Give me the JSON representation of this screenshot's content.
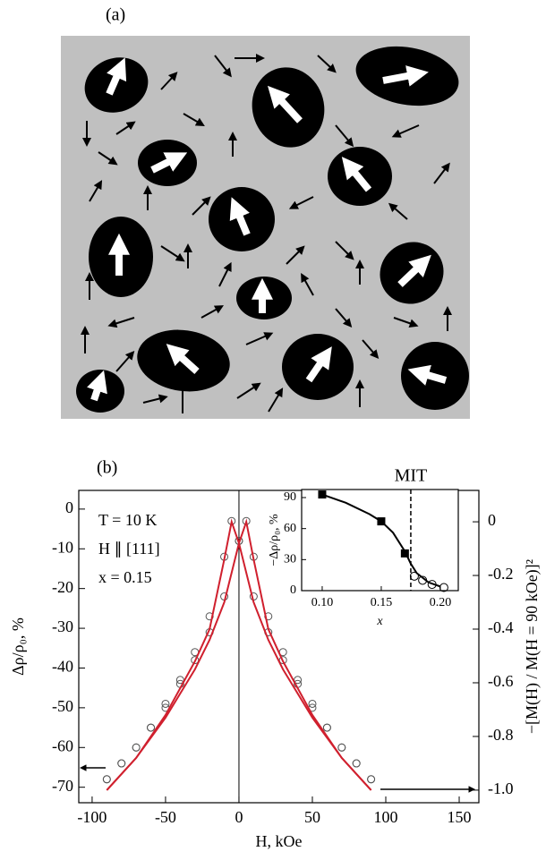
{
  "panel_a": {
    "label": "(a)"
  },
  "chart_data": [
    {
      "type": "scatter",
      "panel_label": "(b)",
      "xlabel": "H, kOe",
      "ylabel": "Δρ/ρ₀, %",
      "y2label": "−[M(H) / M(H = 90 kOe)]²",
      "annotations": [
        "T = 10 K",
        "H ∥ [111]",
        "x = 0.15"
      ],
      "xlim": [
        -109.1,
        163.4
      ],
      "xticks": [
        -100,
        -50,
        0,
        50,
        100,
        150
      ],
      "ylim": [
        -73.9,
        4.7
      ],
      "yticks": [
        0,
        -10,
        -20,
        -30,
        -40,
        -50,
        -60,
        -70
      ],
      "y2lim": [
        -1.047,
        0.117
      ],
      "y2ticks": [
        0,
        -0.2,
        -0.4,
        -0.6,
        -0.8,
        {
          "value": -1,
          "label": "-1.0"
        }
      ],
      "series": [
        {
          "marker": "circle",
          "color": "#555555",
          "x": [
            -90,
            -80,
            -70,
            -60,
            -50,
            -40,
            -30,
            -20,
            -10,
            -5,
            0,
            10,
            20,
            30,
            40,
            50,
            60,
            70,
            80,
            90
          ],
          "values": [
            -68,
            -64,
            -60,
            -55,
            -49,
            -43,
            -36,
            -27,
            -12,
            -3,
            -8,
            -22,
            -31,
            -38,
            -44,
            -50,
            -55,
            -60,
            -64,
            -68
          ]
        },
        {
          "marker": "circle",
          "color": "#555555",
          "x": [
            -90,
            -80,
            -70,
            -60,
            -50,
            -40,
            -30,
            -20,
            -10,
            0,
            5,
            10,
            20,
            30,
            40,
            50,
            60,
            70,
            80,
            90
          ],
          "values": [
            -68,
            -64,
            -60,
            -55,
            -50,
            -44,
            -38,
            -31,
            -22,
            -8,
            -3,
            -12,
            -27,
            -36,
            -43,
            -49,
            -55,
            -60,
            -64,
            -68
          ]
        },
        {
          "marker": "line",
          "color": "#d0202e",
          "axis": "y2",
          "x": [
            -90,
            -70,
            -50,
            -30,
            -20,
            -10,
            -5,
            0,
            10,
            20,
            30,
            50,
            70,
            90
          ],
          "values": [
            -1.0,
            -0.88,
            -0.72,
            -0.52,
            -0.4,
            -0.14,
            0,
            -0.08,
            -0.3,
            -0.44,
            -0.55,
            -0.73,
            -0.88,
            -1.0
          ]
        },
        {
          "marker": "line",
          "color": "#d0202e",
          "axis": "y2",
          "x": [
            -90,
            -70,
            -50,
            -30,
            -20,
            -10,
            0,
            5,
            10,
            20,
            30,
            50,
            70,
            90
          ],
          "values": [
            -1.0,
            -0.88,
            -0.73,
            -0.55,
            -0.44,
            -0.3,
            -0.08,
            0,
            -0.14,
            -0.4,
            -0.52,
            -0.72,
            -0.88,
            -1.0
          ]
        }
      ]
    },
    {
      "type": "scatter",
      "inset": true,
      "xlabel": "x",
      "ylabel": "−Δρ/ρ₀, %",
      "xlim": [
        0.0826,
        0.2152
      ],
      "xticks": [
        {
          "value": 0.1,
          "label": "0.10"
        },
        0.15,
        {
          "value": 0.2,
          "label": "0.20"
        }
      ],
      "ylim": [
        0,
        97.8
      ],
      "yticks": [
        0,
        30,
        60,
        90
      ],
      "vline": {
        "x": 0.175,
        "label": "MIT"
      },
      "series": [
        {
          "marker": "line",
          "color": "#000000",
          "x": [
            0.1,
            0.12,
            0.14,
            0.15,
            0.16,
            0.17,
            0.175,
            0.18,
            0.19,
            0.2
          ],
          "values": [
            93,
            85,
            74,
            67,
            56,
            38,
            26,
            17,
            8,
            4
          ]
        },
        {
          "marker": "square",
          "color": "#000000",
          "x": [
            0.1,
            0.15,
            0.17
          ],
          "values": [
            93,
            67,
            36
          ]
        },
        {
          "marker": "circle",
          "color": "#000000",
          "x": [
            0.178,
            0.185,
            0.193,
            0.203
          ],
          "values": [
            14,
            10,
            6,
            3
          ]
        }
      ]
    }
  ]
}
